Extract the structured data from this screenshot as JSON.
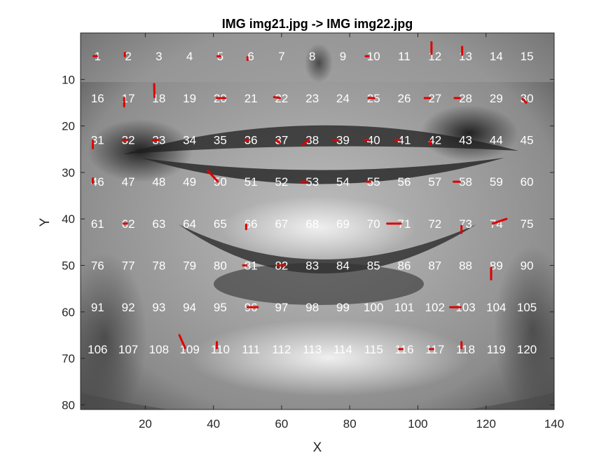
{
  "chart_data": {
    "type": "scatter",
    "title": "IMG img21.jpg -> IMG img22.jpg",
    "xlabel": "X",
    "ylabel": "Y",
    "xlim": [
      1,
      140
    ],
    "ylim": [
      0,
      81
    ],
    "y_reversed": true,
    "x_ticks": [
      20,
      40,
      60,
      80,
      100,
      120,
      140
    ],
    "y_ticks": [
      10,
      20,
      30,
      40,
      50,
      60,
      70,
      80
    ],
    "background": "grayscale face image (smiling mouth region)",
    "grid_columns_x": [
      6,
      15,
      24,
      33,
      42,
      51,
      60,
      69,
      78,
      87,
      96,
      105,
      114,
      123,
      132
    ],
    "grid_rows_y": [
      5,
      14,
      23,
      32,
      41,
      50,
      59,
      68
    ],
    "point_labels": [
      "1",
      "2",
      "3",
      "4",
      "5",
      "6",
      "7",
      "8",
      "9",
      "10",
      "11",
      "12",
      "13",
      "14",
      "15",
      "16",
      "17",
      "18",
      "19",
      "20",
      "21",
      "22",
      "23",
      "24",
      "25",
      "26",
      "27",
      "28",
      "29",
      "30",
      "31",
      "32",
      "33",
      "34",
      "35",
      "36",
      "37",
      "38",
      "39",
      "40",
      "41",
      "42",
      "43",
      "44",
      "45",
      "46",
      "47",
      "48",
      "49",
      "50",
      "51",
      "52",
      "53",
      "54",
      "55",
      "56",
      "57",
      "58",
      "59",
      "60",
      "61",
      "62",
      "63",
      "64",
      "65",
      "66",
      "67",
      "68",
      "69",
      "70",
      "71",
      "72",
      "73",
      "74",
      "75",
      "76",
      "77",
      "78",
      "79",
      "80",
      "81",
      "82",
      "83",
      "84",
      "85",
      "86",
      "87",
      "88",
      "89",
      "90",
      "91",
      "92",
      "93",
      "94",
      "95",
      "96",
      "97",
      "98",
      "99",
      "100",
      "101",
      "102",
      "103",
      "104",
      "105",
      "106",
      "107",
      "108",
      "109",
      "110",
      "111",
      "112",
      "113",
      "114",
      "115",
      "116",
      "117",
      "118",
      "119",
      "120"
    ],
    "vectors": [
      {
        "x1": 4.8,
        "y1": 5,
        "x2": 5.8,
        "y2": 5
      },
      {
        "x1": 14,
        "y1": 4.3,
        "x2": 14,
        "y2": 5
      },
      {
        "x1": 41.2,
        "y1": 5,
        "x2": 42,
        "y2": 5
      },
      {
        "x1": 50,
        "y1": 5.2,
        "x2": 50,
        "y2": 5.8
      },
      {
        "x1": 84.7,
        "y1": 5,
        "x2": 85.5,
        "y2": 5
      },
      {
        "x1": 104,
        "y1": 2,
        "x2": 104,
        "y2": 4.5
      },
      {
        "x1": 113,
        "y1": 3,
        "x2": 113,
        "y2": 4.7
      },
      {
        "x1": 13.8,
        "y1": 14,
        "x2": 13.8,
        "y2": 15.8
      },
      {
        "x1": 22.6,
        "y1": 11,
        "x2": 22.7,
        "y2": 13.8
      },
      {
        "x1": 41,
        "y1": 14,
        "x2": 43.5,
        "y2": 14
      },
      {
        "x1": 57.8,
        "y1": 13.8,
        "x2": 59.5,
        "y2": 14
      },
      {
        "x1": 85.5,
        "y1": 14,
        "x2": 87.2,
        "y2": 14
      },
      {
        "x1": 102,
        "y1": 14,
        "x2": 103.5,
        "y2": 14
      },
      {
        "x1": 110.8,
        "y1": 14,
        "x2": 112.3,
        "y2": 14
      },
      {
        "x1": 130.8,
        "y1": 14.2,
        "x2": 131.8,
        "y2": 15
      },
      {
        "x1": 4.6,
        "y1": 23.2,
        "x2": 4.6,
        "y2": 24.8
      },
      {
        "x1": 13.5,
        "y1": 23,
        "x2": 14.8,
        "y2": 23
      },
      {
        "x1": 22.3,
        "y1": 23,
        "x2": 23.8,
        "y2": 23
      },
      {
        "x1": 49.3,
        "y1": 23,
        "x2": 50.3,
        "y2": 23
      },
      {
        "x1": 58.4,
        "y1": 23,
        "x2": 59.4,
        "y2": 23.6
      },
      {
        "x1": 66.3,
        "y1": 24,
        "x2": 68,
        "y2": 23
      },
      {
        "x1": 75.2,
        "y1": 23,
        "x2": 76.5,
        "y2": 23
      },
      {
        "x1": 84.3,
        "y1": 23,
        "x2": 85.5,
        "y2": 23
      },
      {
        "x1": 93.3,
        "y1": 23,
        "x2": 94.6,
        "y2": 23
      },
      {
        "x1": 103.6,
        "y1": 23.2,
        "x2": 103.6,
        "y2": 24
      },
      {
        "x1": 4.6,
        "y1": 31.3,
        "x2": 4.6,
        "y2": 32.3
      },
      {
        "x1": 38.3,
        "y1": 29.6,
        "x2": 41.3,
        "y2": 32
      },
      {
        "x1": 65.8,
        "y1": 32,
        "x2": 67.5,
        "y2": 32
      },
      {
        "x1": 85,
        "y1": 32,
        "x2": 86,
        "y2": 32
      },
      {
        "x1": 110.5,
        "y1": 32,
        "x2": 112.3,
        "y2": 32
      },
      {
        "x1": 13.6,
        "y1": 41,
        "x2": 14.6,
        "y2": 41
      },
      {
        "x1": 49.6,
        "y1": 41.2,
        "x2": 49.6,
        "y2": 42.2
      },
      {
        "x1": 91,
        "y1": 41,
        "x2": 95,
        "y2": 41
      },
      {
        "x1": 112.8,
        "y1": 41.5,
        "x2": 112.8,
        "y2": 43
      },
      {
        "x1": 122,
        "y1": 41,
        "x2": 126,
        "y2": 40
      },
      {
        "x1": 48.7,
        "y1": 50,
        "x2": 49.7,
        "y2": 50
      },
      {
        "x1": 58.8,
        "y1": 50,
        "x2": 61,
        "y2": 50
      },
      {
        "x1": 121.5,
        "y1": 50.5,
        "x2": 121.5,
        "y2": 53
      },
      {
        "x1": 50,
        "y1": 59,
        "x2": 53,
        "y2": 59
      },
      {
        "x1": 109.5,
        "y1": 59,
        "x2": 112.5,
        "y2": 59
      },
      {
        "x1": 30,
        "y1": 65,
        "x2": 31.7,
        "y2": 67.8
      },
      {
        "x1": 41,
        "y1": 66.5,
        "x2": 41,
        "y2": 67.8
      },
      {
        "x1": 94.5,
        "y1": 68,
        "x2": 95.5,
        "y2": 68
      },
      {
        "x1": 103.5,
        "y1": 68,
        "x2": 104.5,
        "y2": 68
      },
      {
        "x1": 112.8,
        "y1": 66.5,
        "x2": 112.8,
        "y2": 67.8
      }
    ],
    "colors": {
      "vector": "#e00000",
      "label": "#ffffff",
      "axis": "#262626"
    }
  }
}
